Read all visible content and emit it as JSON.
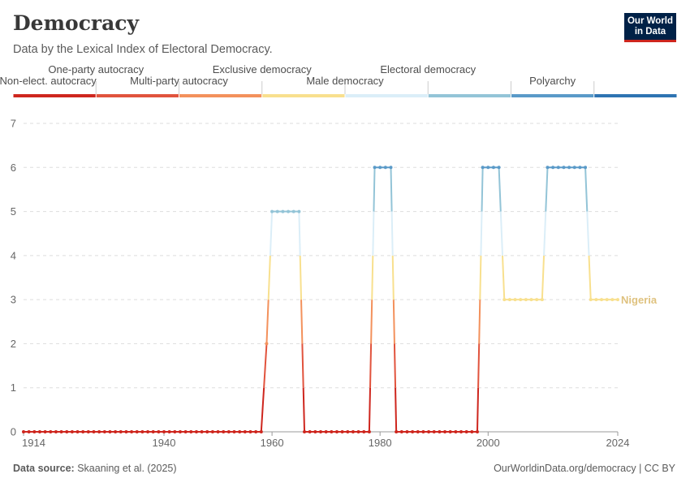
{
  "header": {
    "title": "Democracy",
    "subtitle": "Data by the Lexical Index of Electoral Democracy."
  },
  "logo": {
    "line1": "Our World",
    "line2": "in Data"
  },
  "footer": {
    "source_label": "Data source:",
    "source_text": "Skaaning et al. (2025)",
    "url_text": "OurWorldinData.org/democracy | CC BY"
  },
  "chart_data": {
    "type": "line",
    "title": "Democracy",
    "subtitle": "Data by the Lexical Index of Electoral Democracy.",
    "xlim": [
      1914,
      2024
    ],
    "ylim": [
      0,
      7
    ],
    "y_ticks": [
      0,
      1,
      2,
      3,
      4,
      5,
      6,
      7
    ],
    "x_ticks": [
      1914,
      1940,
      1960,
      1980,
      2000,
      2024
    ],
    "grid": "horizontal-dashed",
    "legend": {
      "placement": "top",
      "categories": [
        {
          "label": "Non-elect. autocracy",
          "value": 0,
          "color": "#ce261e"
        },
        {
          "label": "One-party autocracy",
          "value": 1,
          "color": "#e1533d"
        },
        {
          "label": "Multi-party autocracy",
          "value": 2,
          "color": "#f3915c"
        },
        {
          "label": "Exclusive democracy",
          "value": 3,
          "color": "#f8e08e"
        },
        {
          "label": "Male democracy",
          "value": 4,
          "color": "#dbeef8"
        },
        {
          "label": "Electoral democracy",
          "value": 5,
          "color": "#93c4d7"
        },
        {
          "label": "Polyarchy",
          "value": 6,
          "color": "#5a9ac8"
        },
        {
          "label": "",
          "value": 7,
          "color": "#2e74b2"
        }
      ]
    },
    "series": [
      {
        "name": "Nigeria",
        "label_color": "#dfc27f",
        "runs": [
          {
            "start": 1914,
            "end": 1958,
            "value": 0
          },
          {
            "start": 1959,
            "end": 1959,
            "value": 2
          },
          {
            "start": 1960,
            "end": 1965,
            "value": 5
          },
          {
            "start": 1966,
            "end": 1978,
            "value": 0
          },
          {
            "start": 1979,
            "end": 1982,
            "value": 6
          },
          {
            "start": 1983,
            "end": 1998,
            "value": 0
          },
          {
            "start": 1999,
            "end": 2002,
            "value": 6
          },
          {
            "start": 2003,
            "end": 2010,
            "value": 3
          },
          {
            "start": 2011,
            "end": 2018,
            "value": 6
          },
          {
            "start": 2019,
            "end": 2024,
            "value": 3
          }
        ]
      }
    ]
  }
}
